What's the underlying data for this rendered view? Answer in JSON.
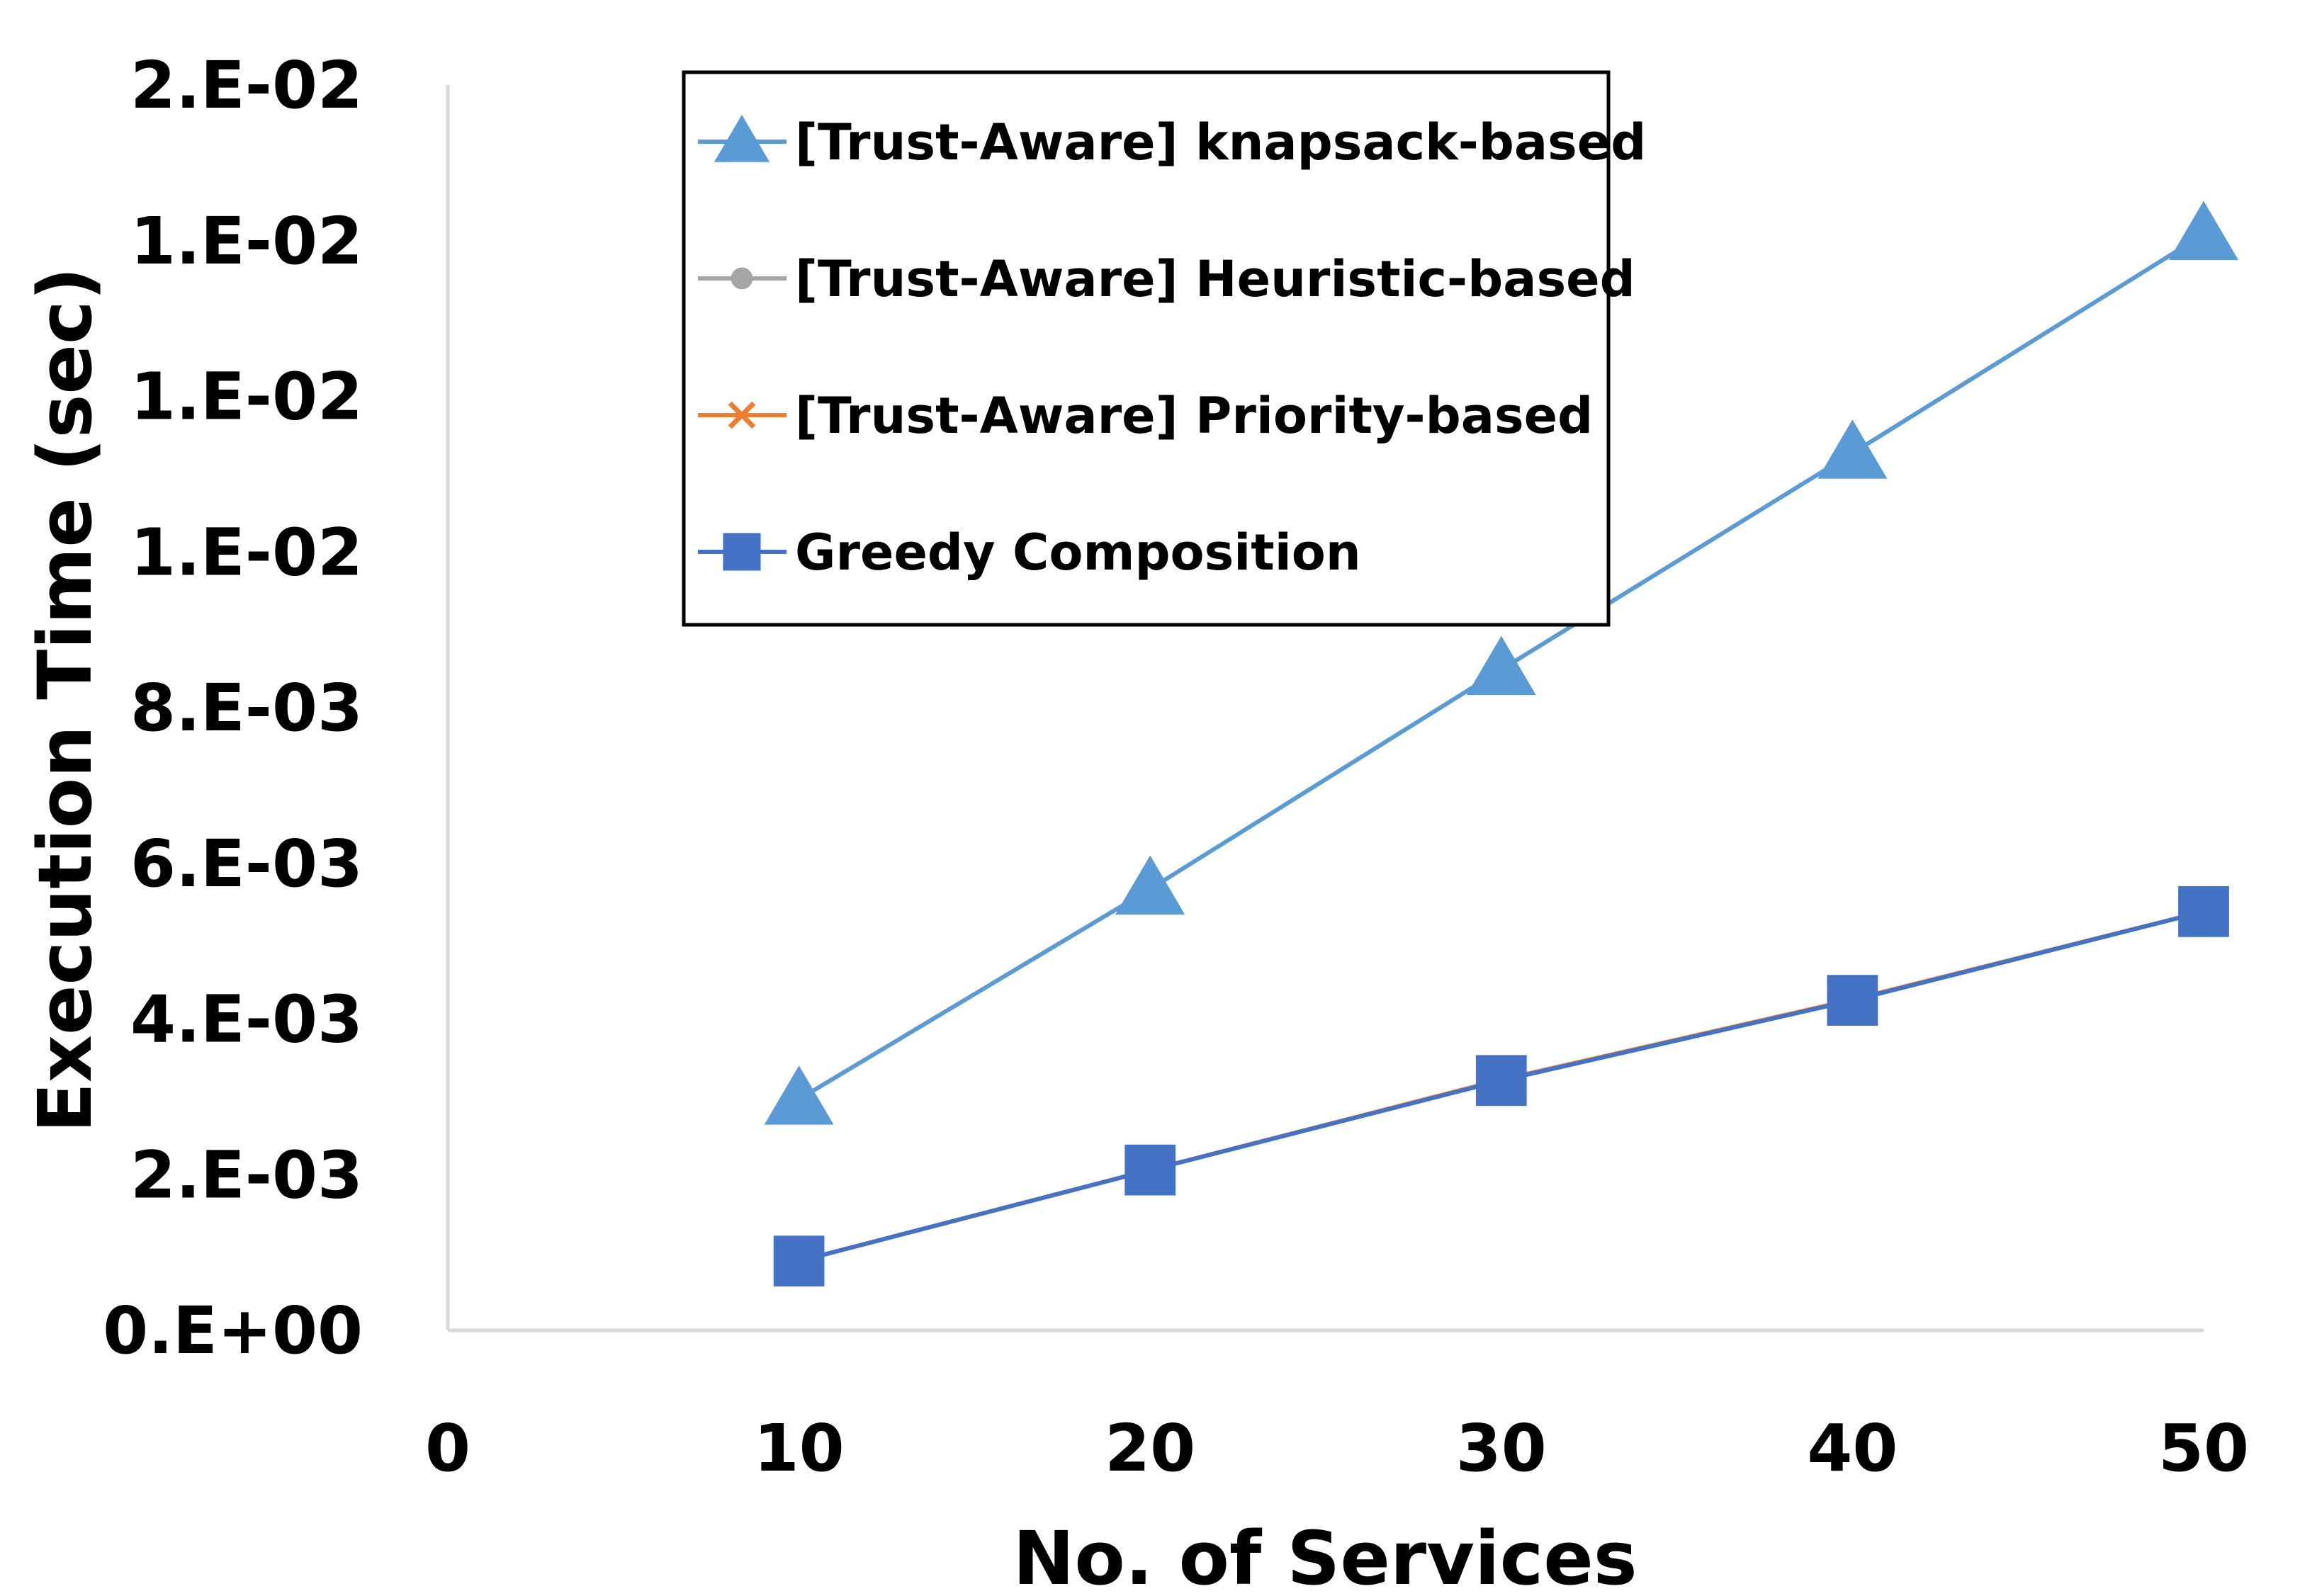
{
  "chart_data": {
    "type": "line",
    "title": "",
    "xlabel": "No. of Services",
    "ylabel": "Execution Time (sec)",
    "xlim": [
      0,
      50
    ],
    "ylim": [
      0,
      0.016
    ],
    "x_ticks": [
      0,
      10,
      20,
      30,
      40,
      50
    ],
    "x_tick_labels": [
      "0",
      "10",
      "20",
      "30",
      "40",
      "50"
    ],
    "y_ticks": [
      0,
      0.002,
      0.004,
      0.006,
      0.008,
      0.01,
      0.012,
      0.014,
      0.016
    ],
    "y_tick_labels": [
      "0.E+00",
      "2.E-03",
      "4.E-03",
      "6.E-03",
      "8.E-03",
      "1.E-02",
      "1.E-02",
      "1.E-02",
      "2.E-02"
    ],
    "grid": false,
    "legend_position": "top-center",
    "x": [
      10,
      20,
      30,
      40,
      50
    ],
    "series": [
      {
        "name": "[Trust-Aware] knapsack-based",
        "marker": "triangle",
        "color": "#5B9BD5",
        "values": [
          0.00297,
          0.00567,
          0.00849,
          0.01127,
          0.01408
        ]
      },
      {
        "name": "[Trust-Aware] Heuristic-based",
        "marker": "circle",
        "color": "#A5A5A5",
        "values": [
          0.00089,
          0.00206,
          0.00322,
          0.00424,
          0.00538
        ]
      },
      {
        "name": "[Trust-Aware] Priority-based",
        "marker": "x",
        "color": "#ED7D31",
        "values": [
          0.00089,
          0.00206,
          0.00322,
          0.00425,
          0.00538
        ]
      },
      {
        "name": "Greedy Composition",
        "marker": "square",
        "color": "#4472C4",
        "values": [
          0.00089,
          0.00206,
          0.00321,
          0.00424,
          0.00538
        ]
      }
    ]
  }
}
